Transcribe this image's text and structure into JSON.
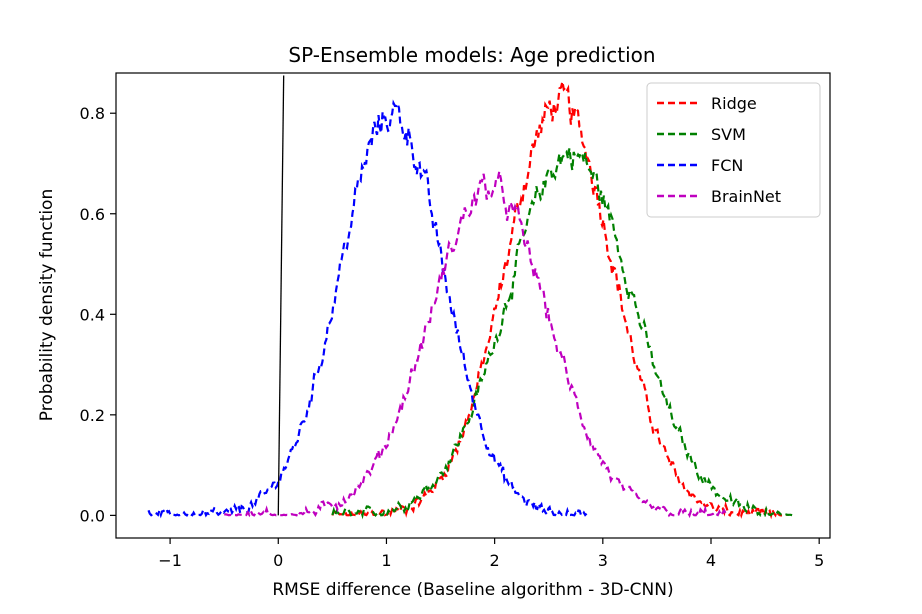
{
  "chart_data": {
    "type": "line",
    "title": "SP-Ensemble models: Age prediction",
    "xlabel": "RMSE difference (Baseline algorithm - 3D-CNN)",
    "ylabel": "Probability density function",
    "xlim": [
      -1.5,
      5.1
    ],
    "ylim": [
      -0.045,
      0.88
    ],
    "xticks": [
      -1,
      0,
      1,
      2,
      3,
      4,
      5
    ],
    "xtick_labels": [
      "−1",
      "0",
      "1",
      "2",
      "3",
      "4",
      "5"
    ],
    "yticks": [
      0.0,
      0.2,
      0.4,
      0.6,
      0.8
    ],
    "ytick_labels": [
      "0.0",
      "0.2",
      "0.4",
      "0.6",
      "0.8"
    ],
    "legend_position": "top-right",
    "reference_line": {
      "x": [
        0.0,
        0.05
      ],
      "y": [
        0.0,
        0.875
      ],
      "color": "#000000"
    },
    "series": [
      {
        "name": "Ridge",
        "color": "#ff0000",
        "style": "dashed",
        "mean": 2.6,
        "sd": 0.5,
        "peak": 0.82,
        "xrange": [
          0.5,
          4.7
        ]
      },
      {
        "name": "SVM",
        "color": "#008000",
        "style": "dashed",
        "mean": 2.7,
        "sd": 0.58,
        "peak": 0.72,
        "xrange": [
          0.5,
          4.75
        ]
      },
      {
        "name": "FCN",
        "color": "#0000ff",
        "style": "dashed",
        "mean": 1.05,
        "sd": 0.48,
        "peak": 0.8,
        "xrange": [
          -1.2,
          2.85
        ]
      },
      {
        "name": "BrainNet",
        "color": "#bf00bf",
        "style": "dashed",
        "mean": 1.95,
        "sd": 0.55,
        "peak": 0.65,
        "xrange": [
          -0.5,
          4.15
        ]
      }
    ]
  }
}
